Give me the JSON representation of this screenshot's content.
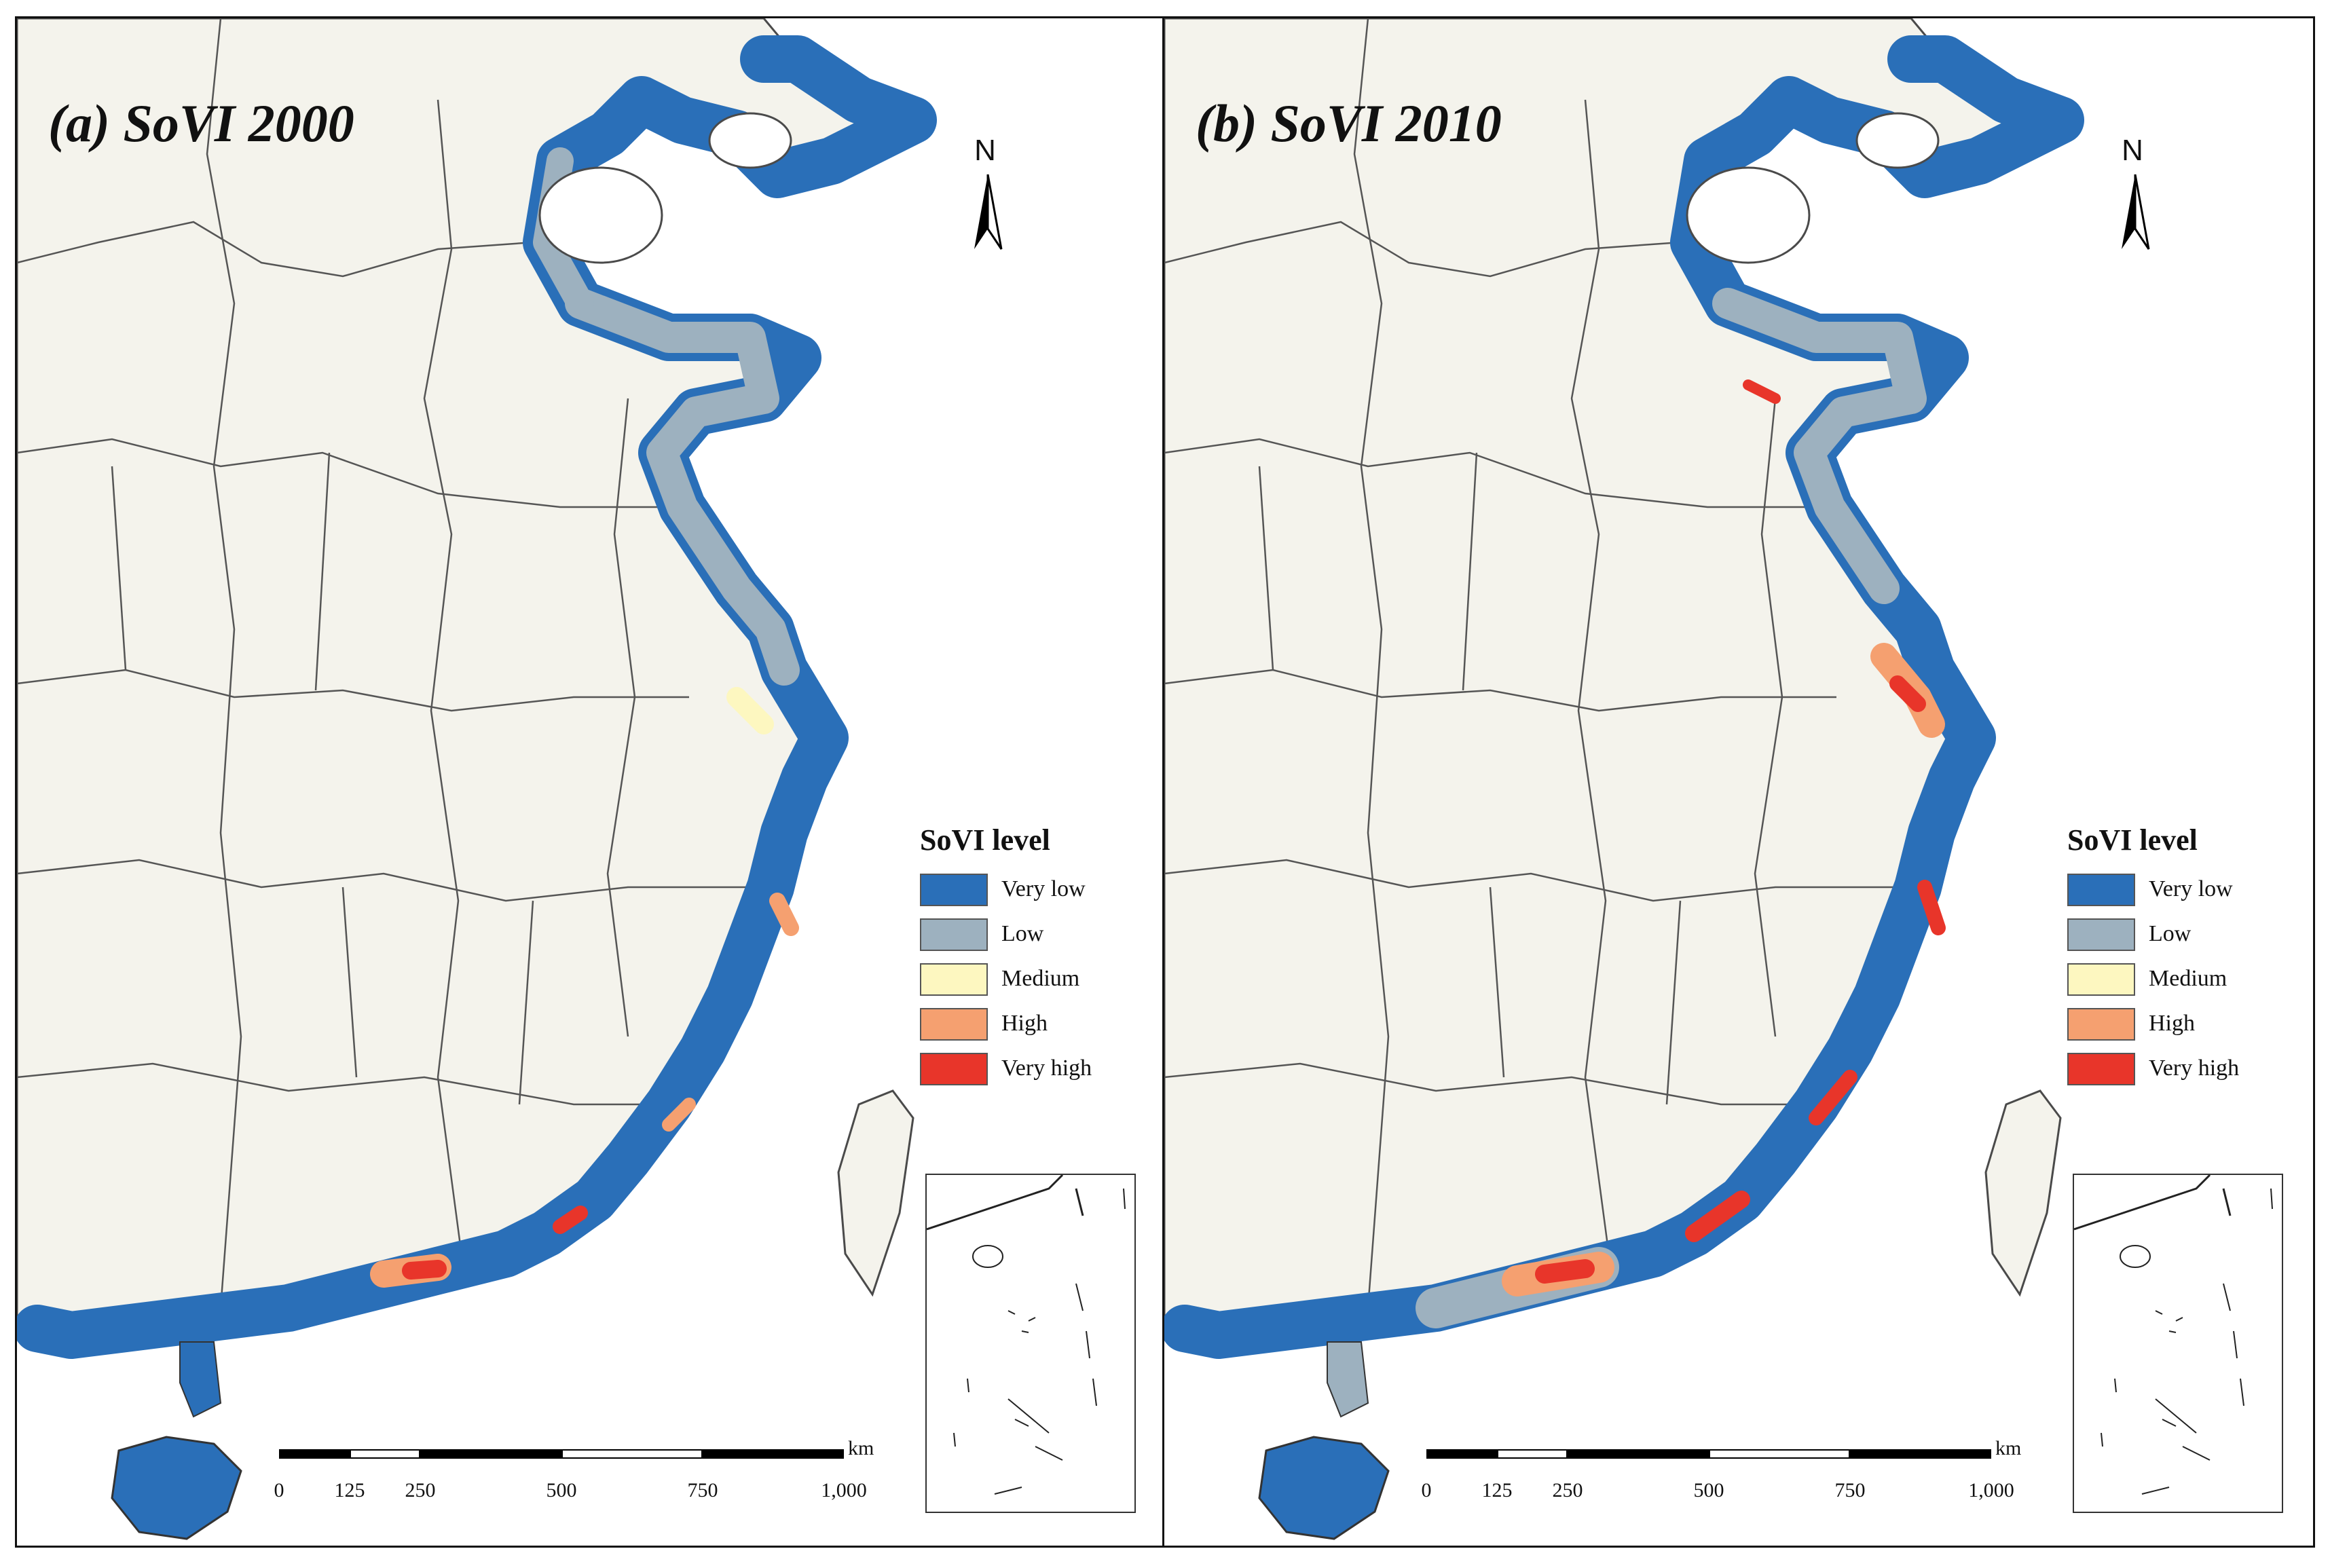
{
  "panels": [
    {
      "id": "a",
      "title": "(a) SoVI 2000"
    },
    {
      "id": "b",
      "title": "(b) SoVI 2010"
    }
  ],
  "north_arrow": {
    "label": "N"
  },
  "legend": {
    "title": "SoVI level",
    "items": [
      {
        "label": "Very low",
        "color": "#2a6fb8"
      },
      {
        "label": "Low",
        "color": "#9db1bf"
      },
      {
        "label": "Medium",
        "color": "#fdf7c0"
      },
      {
        "label": "High",
        "color": "#f5a070"
      },
      {
        "label": "Very high",
        "color": "#e8352a"
      }
    ]
  },
  "scale_bar": {
    "unit": "km",
    "ticks": [
      "0",
      "125",
      "250",
      "500",
      "750",
      "1,000"
    ]
  },
  "colors": {
    "land": "#f4f3ec",
    "sea": "#ffffff",
    "boundary": "#4a4a4a"
  }
}
